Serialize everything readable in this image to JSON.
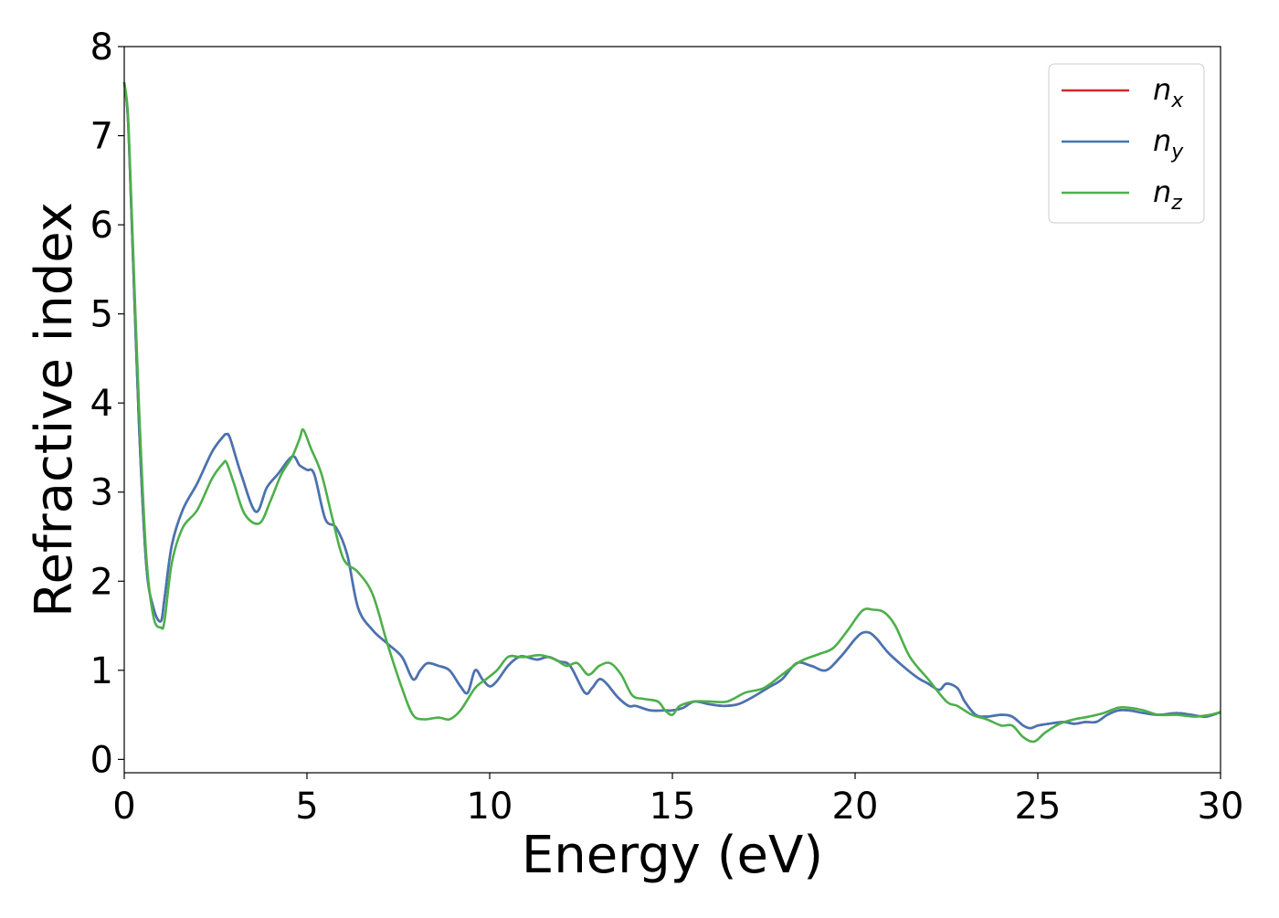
{
  "chart_data": {
    "type": "line",
    "xlabel": "Energy (eV)",
    "ylabel": "Refractive index",
    "xlim": [
      0,
      30
    ],
    "ylim": [
      -0.15,
      8
    ],
    "xticks": [
      0,
      5,
      10,
      15,
      20,
      25,
      30
    ],
    "yticks": [
      0,
      1,
      2,
      3,
      4,
      5,
      6,
      7,
      8
    ],
    "grid": false,
    "legend_position": "top-right",
    "series": [
      {
        "name": "n_x",
        "label_base": "n",
        "label_sub": "x",
        "color": "#d62728",
        "x": [
          0,
          0.1,
          0.2,
          0.4,
          0.6,
          0.8,
          1.0,
          1.1,
          1.3,
          1.6,
          2.0,
          2.4,
          2.7,
          2.8,
          2.9,
          3.2,
          3.6,
          3.9,
          4.2,
          4.6,
          4.8,
          5.0,
          5.2,
          5.5,
          5.8,
          6.1,
          6.4,
          6.8,
          7.2,
          7.6,
          7.9,
          8.1,
          8.3,
          8.6,
          8.9,
          9.2,
          9.4,
          9.6,
          9.8,
          10.0,
          10.2,
          10.5,
          10.8,
          11.0,
          11.3,
          11.6,
          11.9,
          12.2,
          12.6,
          12.8,
          13.0,
          13.2,
          13.5,
          13.8,
          14.0,
          14.4,
          14.8,
          15.0,
          15.3,
          15.6,
          16.0,
          16.4,
          16.8,
          17.2,
          17.6,
          18.0,
          18.4,
          18.8,
          19.2,
          19.6,
          20.0,
          20.2,
          20.4,
          20.6,
          20.9,
          21.3,
          21.7,
          22.0,
          22.3,
          22.5,
          22.8,
          23.0,
          23.3,
          23.6,
          24.0,
          24.3,
          24.6,
          24.8,
          25.0,
          25.3,
          25.7,
          26.0,
          26.3,
          26.6,
          26.9,
          27.2,
          27.5,
          27.9,
          28.3,
          28.8,
          29.2,
          29.6,
          30.0
        ],
        "y": [
          7.6,
          7.2,
          6.1,
          3.8,
          2.2,
          1.7,
          1.55,
          1.8,
          2.4,
          2.8,
          3.1,
          3.45,
          3.62,
          3.65,
          3.6,
          3.2,
          2.78,
          3.05,
          3.2,
          3.4,
          3.3,
          3.25,
          3.2,
          2.7,
          2.6,
          2.3,
          1.7,
          1.45,
          1.3,
          1.15,
          0.9,
          1.0,
          1.08,
          1.05,
          1.0,
          0.82,
          0.75,
          1.0,
          0.9,
          0.82,
          0.88,
          1.05,
          1.15,
          1.15,
          1.12,
          1.15,
          1.1,
          1.05,
          0.75,
          0.8,
          0.9,
          0.85,
          0.7,
          0.6,
          0.6,
          0.55,
          0.55,
          0.55,
          0.58,
          0.65,
          0.62,
          0.6,
          0.62,
          0.7,
          0.8,
          0.9,
          1.08,
          1.05,
          1.0,
          1.15,
          1.35,
          1.42,
          1.42,
          1.35,
          1.2,
          1.05,
          0.92,
          0.85,
          0.78,
          0.85,
          0.8,
          0.65,
          0.5,
          0.48,
          0.5,
          0.48,
          0.38,
          0.35,
          0.38,
          0.4,
          0.42,
          0.4,
          0.42,
          0.42,
          0.5,
          0.55,
          0.55,
          0.52,
          0.5,
          0.52,
          0.5,
          0.48,
          0.53
        ]
      },
      {
        "name": "n_y",
        "label_base": "n",
        "label_sub": "y",
        "color": "#4575b4",
        "x": [
          0,
          0.1,
          0.2,
          0.4,
          0.6,
          0.8,
          1.0,
          1.1,
          1.3,
          1.6,
          2.0,
          2.4,
          2.7,
          2.8,
          2.9,
          3.2,
          3.6,
          3.9,
          4.2,
          4.6,
          4.8,
          5.0,
          5.2,
          5.5,
          5.8,
          6.1,
          6.4,
          6.8,
          7.2,
          7.6,
          7.9,
          8.1,
          8.3,
          8.6,
          8.9,
          9.2,
          9.4,
          9.6,
          9.8,
          10.0,
          10.2,
          10.5,
          10.8,
          11.0,
          11.3,
          11.6,
          11.9,
          12.2,
          12.6,
          12.8,
          13.0,
          13.2,
          13.5,
          13.8,
          14.0,
          14.4,
          14.8,
          15.0,
          15.3,
          15.6,
          16.0,
          16.4,
          16.8,
          17.2,
          17.6,
          18.0,
          18.4,
          18.8,
          19.2,
          19.6,
          20.0,
          20.2,
          20.4,
          20.6,
          20.9,
          21.3,
          21.7,
          22.0,
          22.3,
          22.5,
          22.8,
          23.0,
          23.3,
          23.6,
          24.0,
          24.3,
          24.6,
          24.8,
          25.0,
          25.3,
          25.7,
          26.0,
          26.3,
          26.6,
          26.9,
          27.2,
          27.5,
          27.9,
          28.3,
          28.8,
          29.2,
          29.6,
          30.0
        ],
        "y": [
          7.6,
          7.2,
          6.1,
          3.8,
          2.2,
          1.7,
          1.55,
          1.8,
          2.4,
          2.8,
          3.1,
          3.45,
          3.62,
          3.65,
          3.6,
          3.2,
          2.78,
          3.05,
          3.2,
          3.4,
          3.3,
          3.25,
          3.2,
          2.7,
          2.6,
          2.3,
          1.7,
          1.45,
          1.3,
          1.15,
          0.9,
          1.0,
          1.08,
          1.05,
          1.0,
          0.82,
          0.75,
          1.0,
          0.9,
          0.82,
          0.88,
          1.05,
          1.15,
          1.15,
          1.12,
          1.15,
          1.1,
          1.05,
          0.75,
          0.8,
          0.9,
          0.85,
          0.7,
          0.6,
          0.6,
          0.55,
          0.55,
          0.55,
          0.58,
          0.65,
          0.62,
          0.6,
          0.62,
          0.7,
          0.8,
          0.9,
          1.08,
          1.05,
          1.0,
          1.15,
          1.35,
          1.42,
          1.42,
          1.35,
          1.2,
          1.05,
          0.92,
          0.85,
          0.78,
          0.85,
          0.8,
          0.65,
          0.5,
          0.48,
          0.5,
          0.48,
          0.38,
          0.35,
          0.38,
          0.4,
          0.42,
          0.4,
          0.42,
          0.42,
          0.5,
          0.55,
          0.55,
          0.52,
          0.5,
          0.52,
          0.5,
          0.48,
          0.53
        ]
      },
      {
        "name": "n_z",
        "label_base": "n",
        "label_sub": "z",
        "color": "#4daf4a",
        "x": [
          0,
          0.1,
          0.2,
          0.4,
          0.6,
          0.8,
          1.0,
          1.1,
          1.3,
          1.6,
          2.0,
          2.4,
          2.7,
          2.8,
          3.0,
          3.3,
          3.7,
          4.0,
          4.3,
          4.6,
          4.8,
          4.9,
          5.1,
          5.4,
          5.7,
          6.0,
          6.4,
          6.8,
          7.2,
          7.6,
          7.9,
          8.2,
          8.6,
          8.9,
          9.2,
          9.6,
          9.9,
          10.2,
          10.5,
          10.8,
          11.0,
          11.4,
          11.8,
          12.1,
          12.4,
          12.7,
          13.0,
          13.3,
          13.6,
          13.9,
          14.2,
          14.6,
          14.8,
          15.0,
          15.2,
          15.6,
          16.0,
          16.5,
          17.0,
          17.5,
          18.0,
          18.5,
          19.0,
          19.4,
          19.8,
          20.2,
          20.5,
          20.8,
          21.1,
          21.5,
          22.0,
          22.5,
          22.8,
          23.2,
          23.6,
          24.0,
          24.3,
          24.6,
          24.9,
          25.2,
          25.6,
          26.0,
          26.4,
          26.8,
          27.2,
          27.5,
          27.9,
          28.3,
          28.8,
          29.3,
          29.7,
          30.0
        ],
        "y": [
          7.6,
          7.25,
          6.2,
          4.0,
          2.3,
          1.6,
          1.48,
          1.55,
          2.2,
          2.6,
          2.8,
          3.15,
          3.32,
          3.33,
          3.1,
          2.75,
          2.65,
          2.9,
          3.2,
          3.4,
          3.6,
          3.7,
          3.5,
          3.2,
          2.7,
          2.25,
          2.1,
          1.85,
          1.3,
          0.8,
          0.5,
          0.45,
          0.47,
          0.45,
          0.55,
          0.8,
          0.9,
          1.0,
          1.15,
          1.15,
          1.15,
          1.17,
          1.12,
          1.05,
          1.08,
          0.95,
          1.05,
          1.08,
          0.95,
          0.72,
          0.68,
          0.65,
          0.55,
          0.5,
          0.6,
          0.65,
          0.65,
          0.65,
          0.75,
          0.8,
          0.95,
          1.1,
          1.18,
          1.25,
          1.45,
          1.67,
          1.68,
          1.65,
          1.5,
          1.15,
          0.9,
          0.65,
          0.6,
          0.5,
          0.45,
          0.38,
          0.38,
          0.25,
          0.2,
          0.3,
          0.4,
          0.45,
          0.48,
          0.52,
          0.58,
          0.58,
          0.55,
          0.5,
          0.5,
          0.48,
          0.5,
          0.53
        ]
      }
    ]
  }
}
